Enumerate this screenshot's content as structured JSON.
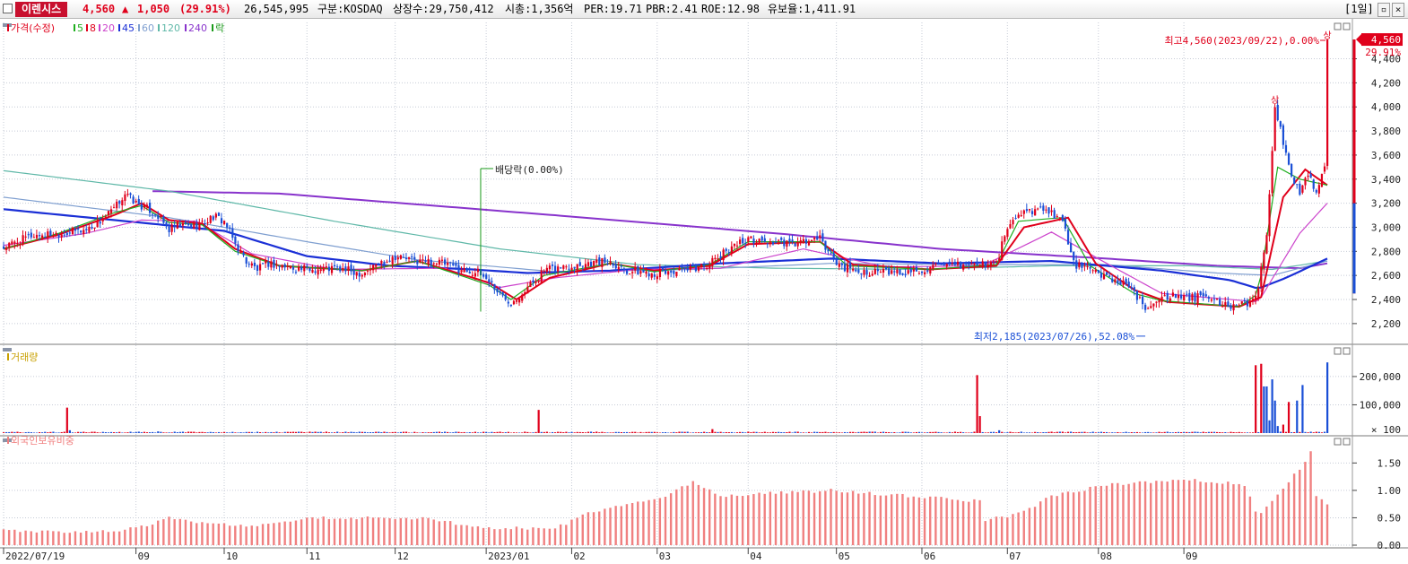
{
  "header": {
    "stock_name": "이렌시스",
    "price": "4,560",
    "change_icon": "arrow-up-icon",
    "change": "1,050",
    "change_pct": "(29.91%)",
    "volume": "26,545,995",
    "market": "구분:KOSDAQ",
    "shares": "상장수:29,750,412",
    "market_cap": "시총:1,356억",
    "per": "PER:19.71",
    "pbr": "PBR:2.41",
    "roe": "ROE:12.98",
    "reserve_ratio": "유보율:1,411.91",
    "period": "[1일]"
  },
  "colors": {
    "up": "#e0001b",
    "down": "#1a4fd6",
    "ma5": "#1fae1f",
    "ma8": "#e0001b",
    "ma20": "#cc44cc",
    "ma45": "#1a2fd6",
    "ma60": "#7f9fd0",
    "ma120": "#5fb8a8",
    "ma240": "#8833cc",
    "dividend": "#1a9a1a",
    "foreign": "#f08080",
    "grid": "#c6cbd6"
  },
  "chart_data": [
    {
      "type": "candlestick",
      "name": "price",
      "legend": [
        {
          "label": "가격(수정)",
          "color": "#e0001b"
        },
        {
          "label": "5",
          "color": "#1fae1f"
        },
        {
          "label": "8",
          "color": "#e0001b"
        },
        {
          "label": "20",
          "color": "#cc44cc"
        },
        {
          "label": "45",
          "color": "#1a2fd6"
        },
        {
          "label": "60",
          "color": "#7f9fd0"
        },
        {
          "label": "120",
          "color": "#5fb8a8"
        },
        {
          "label": "240",
          "color": "#8833cc"
        },
        {
          "label": "락",
          "color": "#1a9a1a"
        }
      ],
      "ylim": [
        2050,
        4620
      ],
      "yticks": [
        "4,400",
        "4,200",
        "4,000",
        "3,800",
        "3,600",
        "3,400",
        "3,200",
        "3,000",
        "2,800",
        "2,600",
        "2,400",
        "2,200"
      ],
      "last_price_label": "4,560",
      "last_pct_label": "29.91%",
      "annotations": {
        "high": "최고4,560(2023/09/22),0.00%",
        "high_marker": "상",
        "low": "최저2,185(2023/07/26),52.08%",
        "dividend": "배당락(0.00%)",
        "limit_up_mark": "상"
      },
      "close_path": [
        [
          0,
          2830
        ],
        [
          10,
          2930
        ],
        [
          20,
          2950
        ],
        [
          30,
          2980
        ],
        [
          35,
          3050
        ],
        [
          40,
          3150
        ],
        [
          44,
          3280
        ],
        [
          48,
          3200
        ],
        [
          55,
          3120
        ],
        [
          60,
          2980
        ],
        [
          64,
          3020
        ],
        [
          68,
          3010
        ],
        [
          72,
          3030
        ],
        [
          76,
          3090
        ],
        [
          80,
          3050
        ],
        [
          84,
          2860
        ],
        [
          88,
          2720
        ],
        [
          92,
          2650
        ],
        [
          96,
          2700
        ],
        [
          100,
          2680
        ],
        [
          110,
          2650
        ],
        [
          120,
          2660
        ],
        [
          130,
          2620
        ],
        [
          136,
          2700
        ],
        [
          142,
          2760
        ],
        [
          150,
          2720
        ],
        [
          158,
          2710
        ],
        [
          166,
          2650
        ],
        [
          172,
          2620
        ],
        [
          176,
          2560
        ],
        [
          180,
          2440
        ],
        [
          184,
          2380
        ],
        [
          190,
          2500
        ],
        [
          196,
          2640
        ],
        [
          200,
          2660
        ],
        [
          210,
          2700
        ],
        [
          220,
          2720
        ],
        [
          226,
          2640
        ],
        [
          236,
          2620
        ],
        [
          248,
          2640
        ],
        [
          256,
          2700
        ],
        [
          260,
          2760
        ],
        [
          264,
          2850
        ],
        [
          270,
          2900
        ],
        [
          276,
          2880
        ],
        [
          286,
          2860
        ],
        [
          296,
          2900
        ],
        [
          302,
          2700
        ],
        [
          308,
          2640
        ],
        [
          316,
          2630
        ],
        [
          326,
          2620
        ],
        [
          336,
          2660
        ],
        [
          350,
          2690
        ],
        [
          360,
          2700
        ],
        [
          364,
          3000
        ],
        [
          368,
          3100
        ],
        [
          372,
          3140
        ],
        [
          378,
          3160
        ],
        [
          384,
          3050
        ],
        [
          388,
          2700
        ],
        [
          396,
          2620
        ],
        [
          404,
          2560
        ],
        [
          410,
          2450
        ],
        [
          414,
          2320
        ],
        [
          418,
          2410
        ],
        [
          422,
          2430
        ],
        [
          428,
          2410
        ],
        [
          436,
          2420
        ],
        [
          442,
          2360
        ],
        [
          448,
          2340
        ],
        [
          452,
          2380
        ],
        [
          455,
          2500
        ],
        [
          458,
          2950
        ],
        [
          461,
          4000
        ],
        [
          464,
          3700
        ],
        [
          467,
          3400
        ],
        [
          470,
          3300
        ],
        [
          473,
          3450
        ],
        [
          476,
          3300
        ],
        [
          479,
          3500
        ],
        [
          480,
          4560
        ]
      ],
      "ma_paths": {
        "ma5": [
          [
            0,
            2820
          ],
          [
            20,
            2950
          ],
          [
            40,
            3120
          ],
          [
            50,
            3180
          ],
          [
            60,
            3040
          ],
          [
            72,
            3020
          ],
          [
            84,
            2800
          ],
          [
            100,
            2680
          ],
          [
            130,
            2640
          ],
          [
            150,
            2720
          ],
          [
            176,
            2520
          ],
          [
            184,
            2400
          ],
          [
            196,
            2600
          ],
          [
            220,
            2700
          ],
          [
            236,
            2630
          ],
          [
            256,
            2690
          ],
          [
            270,
            2880
          ],
          [
            296,
            2880
          ],
          [
            306,
            2680
          ],
          [
            336,
            2650
          ],
          [
            360,
            2690
          ],
          [
            368,
            3050
          ],
          [
            384,
            3080
          ],
          [
            394,
            2680
          ],
          [
            410,
            2450
          ],
          [
            420,
            2390
          ],
          [
            448,
            2340
          ],
          [
            455,
            2450
          ],
          [
            462,
            3500
          ],
          [
            470,
            3400
          ],
          [
            480,
            3350
          ]
        ],
        "ma8": [
          [
            0,
            2820
          ],
          [
            20,
            2940
          ],
          [
            40,
            3100
          ],
          [
            50,
            3200
          ],
          [
            60,
            3060
          ],
          [
            72,
            3030
          ],
          [
            84,
            2820
          ],
          [
            100,
            2680
          ],
          [
            130,
            2640
          ],
          [
            150,
            2720
          ],
          [
            176,
            2540
          ],
          [
            186,
            2400
          ],
          [
            198,
            2580
          ],
          [
            220,
            2700
          ],
          [
            236,
            2640
          ],
          [
            256,
            2680
          ],
          [
            270,
            2860
          ],
          [
            296,
            2880
          ],
          [
            308,
            2690
          ],
          [
            336,
            2650
          ],
          [
            360,
            2680
          ],
          [
            370,
            3000
          ],
          [
            386,
            3080
          ],
          [
            396,
            2700
          ],
          [
            410,
            2480
          ],
          [
            422,
            2380
          ],
          [
            448,
            2340
          ],
          [
            456,
            2420
          ],
          [
            464,
            3250
          ],
          [
            472,
            3480
          ],
          [
            480,
            3350
          ]
        ],
        "ma20": [
          [
            0,
            2850
          ],
          [
            30,
            2950
          ],
          [
            50,
            3060
          ],
          [
            70,
            3050
          ],
          [
            90,
            2780
          ],
          [
            120,
            2650
          ],
          [
            160,
            2660
          ],
          [
            180,
            2500
          ],
          [
            200,
            2580
          ],
          [
            230,
            2650
          ],
          [
            260,
            2660
          ],
          [
            290,
            2820
          ],
          [
            320,
            2670
          ],
          [
            355,
            2680
          ],
          [
            380,
            2960
          ],
          [
            400,
            2700
          ],
          [
            420,
            2450
          ],
          [
            455,
            2380
          ],
          [
            470,
            2950
          ],
          [
            480,
            3200
          ]
        ],
        "ma45": [
          [
            0,
            3150
          ],
          [
            40,
            3060
          ],
          [
            80,
            2970
          ],
          [
            110,
            2760
          ],
          [
            140,
            2680
          ],
          [
            170,
            2650
          ],
          [
            190,
            2620
          ],
          [
            220,
            2640
          ],
          [
            260,
            2700
          ],
          [
            300,
            2740
          ],
          [
            340,
            2700
          ],
          [
            380,
            2720
          ],
          [
            420,
            2640
          ],
          [
            445,
            2560
          ],
          [
            455,
            2490
          ],
          [
            465,
            2580
          ],
          [
            480,
            2740
          ]
        ],
        "ma60": [
          [
            0,
            3250
          ],
          [
            60,
            3080
          ],
          [
            110,
            2880
          ],
          [
            150,
            2730
          ],
          [
            200,
            2630
          ],
          [
            250,
            2650
          ],
          [
            300,
            2700
          ],
          [
            350,
            2690
          ],
          [
            400,
            2690
          ],
          [
            440,
            2620
          ],
          [
            460,
            2600
          ],
          [
            480,
            2720
          ]
        ],
        "ma120": [
          [
            0,
            3470
          ],
          [
            60,
            3300
          ],
          [
            120,
            3050
          ],
          [
            180,
            2820
          ],
          [
            230,
            2690
          ],
          [
            280,
            2660
          ],
          [
            330,
            2650
          ],
          [
            380,
            2680
          ],
          [
            430,
            2680
          ],
          [
            460,
            2650
          ],
          [
            480,
            2720
          ]
        ],
        "ma240": [
          [
            54,
            3300
          ],
          [
            100,
            3280
          ],
          [
            200,
            3100
          ],
          [
            280,
            2950
          ],
          [
            340,
            2820
          ],
          [
            400,
            2740
          ],
          [
            440,
            2680
          ],
          [
            470,
            2660
          ],
          [
            480,
            2700
          ]
        ]
      }
    },
    {
      "type": "bar",
      "name": "volume",
      "legend": [
        {
          "label": "거래량",
          "color": "#c8a000"
        }
      ],
      "ylim": [
        0,
        260000
      ],
      "yticks": [
        "200,000",
        "100,000"
      ],
      "unit_label": "× 100",
      "values_approx": [
        [
          23,
          90000
        ],
        [
          24,
          10000
        ],
        [
          56,
          6000
        ],
        [
          194,
          82000
        ],
        [
          257,
          14000
        ],
        [
          353,
          205000
        ],
        [
          354,
          60000
        ],
        [
          361,
          10000
        ],
        [
          454,
          240000
        ],
        [
          456,
          245000
        ],
        [
          457,
          165000
        ],
        [
          458,
          165000
        ],
        [
          459,
          45000
        ],
        [
          460,
          190000
        ],
        [
          461,
          115000
        ],
        [
          462,
          25000
        ],
        [
          464,
          30000
        ],
        [
          466,
          110000
        ],
        [
          469,
          115000
        ],
        [
          471,
          170000
        ],
        [
          480,
          250000
        ]
      ]
    },
    {
      "type": "bar",
      "name": "foreign_holding",
      "legend": [
        {
          "label": "외국인보유비중",
          "color": "#f08080"
        }
      ],
      "ylim": [
        0,
        1.8
      ],
      "yticks": [
        "1.50",
        "1.00",
        "0.50",
        "0.00"
      ],
      "level_path": [
        [
          0,
          0.26
        ],
        [
          40,
          0.25
        ],
        [
          55,
          0.4
        ],
        [
          60,
          0.52
        ],
        [
          70,
          0.4
        ],
        [
          90,
          0.35
        ],
        [
          110,
          0.5
        ],
        [
          150,
          0.5
        ],
        [
          175,
          0.32
        ],
        [
          200,
          0.3
        ],
        [
          210,
          0.55
        ],
        [
          240,
          0.9
        ],
        [
          250,
          1.15
        ],
        [
          260,
          0.9
        ],
        [
          300,
          1.0
        ],
        [
          355,
          0.8
        ],
        [
          356,
          0.45
        ],
        [
          370,
          0.6
        ],
        [
          380,
          0.9
        ],
        [
          400,
          1.1
        ],
        [
          430,
          1.2
        ],
        [
          450,
          1.1
        ],
        [
          455,
          0.5
        ],
        [
          460,
          0.8
        ],
        [
          470,
          1.4
        ],
        [
          474,
          1.7
        ],
        [
          476,
          0.9
        ],
        [
          480,
          0.72
        ]
      ]
    }
  ],
  "x_axis": {
    "labels": [
      {
        "text": "2022/07/19",
        "bar": 0
      },
      {
        "text": "09",
        "bar": 48
      },
      {
        "text": "10",
        "bar": 80
      },
      {
        "text": "11",
        "bar": 110
      },
      {
        "text": "12",
        "bar": 142
      },
      {
        "text": "2023/01",
        "bar": 175
      },
      {
        "text": "02",
        "bar": 206
      },
      {
        "text": "03",
        "bar": 237
      },
      {
        "text": "04",
        "bar": 270
      },
      {
        "text": "05",
        "bar": 302
      },
      {
        "text": "06",
        "bar": 333
      },
      {
        "text": "07",
        "bar": 364
      },
      {
        "text": "08",
        "bar": 397
      },
      {
        "text": "09",
        "bar": 428
      }
    ]
  }
}
